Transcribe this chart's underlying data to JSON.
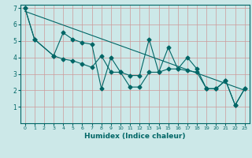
{
  "xlabel": "Humidex (Indice chaleur)",
  "bg_color": "#cce8e8",
  "line_color": "#006666",
  "xlim": [
    -0.5,
    23.5
  ],
  "ylim": [
    0,
    7.2
  ],
  "yticks": [
    1,
    2,
    3,
    4,
    5,
    6,
    7
  ],
  "xticks": [
    0,
    1,
    2,
    3,
    4,
    5,
    6,
    7,
    8,
    9,
    10,
    11,
    12,
    13,
    14,
    15,
    16,
    17,
    18,
    19,
    20,
    21,
    22,
    23
  ],
  "series1_x": [
    0,
    1,
    3,
    4,
    5,
    6,
    7,
    8,
    9,
    10,
    11,
    12,
    13,
    14,
    15,
    16,
    17,
    18,
    19,
    20,
    21,
    22,
    23
  ],
  "series1_y": [
    7,
    5.1,
    4.1,
    5.5,
    5.1,
    4.9,
    4.8,
    2.1,
    4.0,
    3.1,
    2.9,
    2.9,
    5.1,
    3.1,
    4.6,
    3.3,
    4.0,
    3.3,
    2.1,
    2.1,
    2.6,
    1.1,
    2.1
  ],
  "series2_x": [
    0,
    1,
    3,
    4,
    5,
    6,
    7,
    8,
    9,
    10,
    11,
    12,
    13,
    14,
    15,
    16,
    17,
    18,
    19,
    20,
    21,
    22,
    23
  ],
  "series2_y": [
    7,
    5.1,
    4.1,
    3.9,
    3.8,
    3.6,
    3.4,
    4.1,
    3.1,
    3.1,
    2.2,
    2.2,
    3.1,
    3.1,
    3.3,
    3.3,
    3.2,
    3.1,
    2.1,
    2.1,
    2.6,
    1.1,
    2.1
  ],
  "trend_x": [
    0,
    23
  ],
  "trend_y": [
    6.8,
    2.0
  ],
  "grid_color": "#cc9999",
  "marker": "D",
  "markersize": 2.5,
  "linewidth": 0.8
}
